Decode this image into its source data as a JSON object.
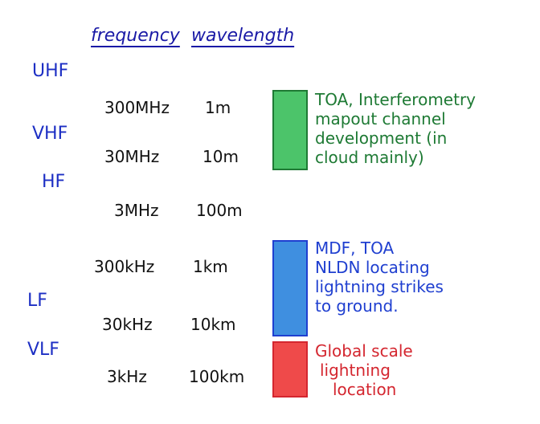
{
  "headers": {
    "frequency": "frequency",
    "wavelength": "wavelength"
  },
  "bands": [
    "UHF",
    "VHF",
    "HF",
    "LF",
    "VLF"
  ],
  "rows": [
    {
      "frequency": "300MHz",
      "wavelength": "1m"
    },
    {
      "frequency": "30MHz",
      "wavelength": "10m"
    },
    {
      "frequency": "3MHz",
      "wavelength": "100m"
    },
    {
      "frequency": "300kHz",
      "wavelength": "1km"
    },
    {
      "frequency": "30kHz",
      "wavelength": "10km"
    },
    {
      "frequency": "3kHz",
      "wavelength": "100km"
    }
  ],
  "notes": [
    {
      "color": "#1e7a34",
      "fill": "#4cc46a",
      "lines": [
        "TOA, Interferometry",
        "mapout channel",
        "development (in",
        "cloud mainly)"
      ]
    },
    {
      "color": "#1f3fd0",
      "fill": "#3f8fe0",
      "lines": [
        "MDF, TOA",
        "NLDN locating",
        "lightning strikes",
        "to ground."
      ]
    },
    {
      "color": "#d4262f",
      "fill": "#ef4a4a",
      "lines": [
        "Global scale",
        "lightning",
        "location"
      ]
    }
  ]
}
